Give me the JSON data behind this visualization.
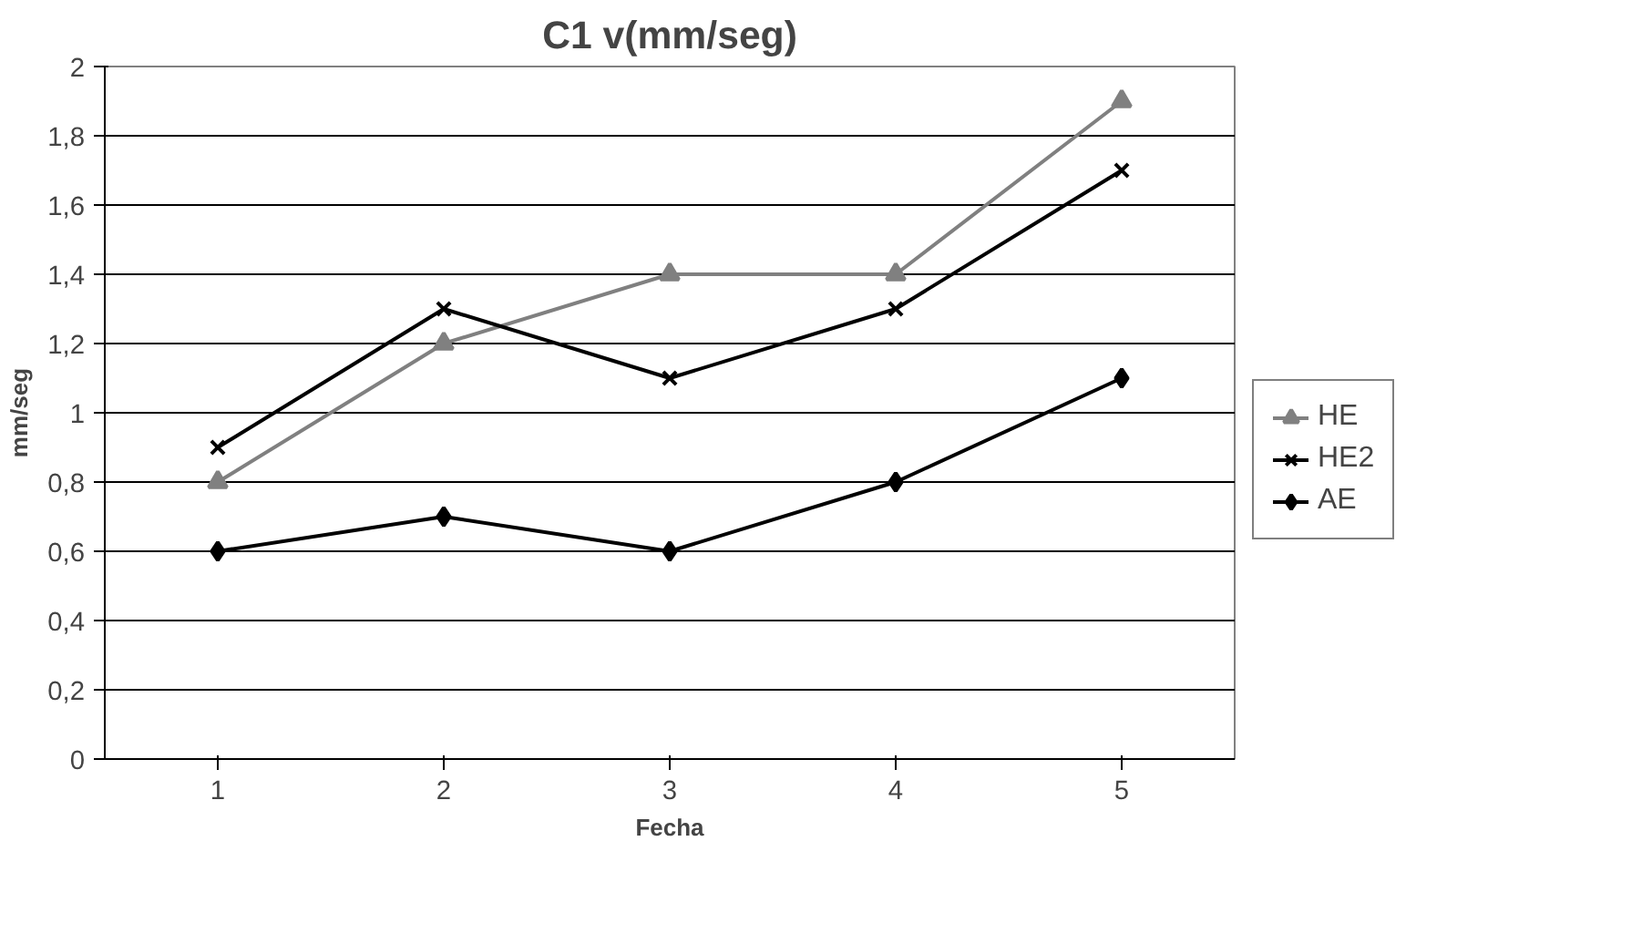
{
  "chart_data": {
    "type": "line",
    "title": "C1 v(mm/seg)",
    "xlabel": "Fecha",
    "ylabel": "mm/seg",
    "categories": [
      "1",
      "2",
      "3",
      "4",
      "5"
    ],
    "series": [
      {
        "name": "HE",
        "color": "#808080",
        "marker": "triangle",
        "values": [
          0.8,
          1.2,
          1.4,
          1.4,
          1.9
        ]
      },
      {
        "name": "HE2",
        "color": "#000000",
        "marker": "x",
        "values": [
          0.9,
          1.3,
          1.1,
          1.3,
          1.7
        ]
      },
      {
        "name": "AE",
        "color": "#000000",
        "marker": "diamond",
        "values": [
          0.6,
          0.7,
          0.6,
          0.8,
          1.1
        ]
      }
    ],
    "ylim": [
      0,
      2
    ],
    "yticks": [
      0,
      {
        "value": 0.2,
        "label": "0,2"
      },
      {
        "value": 0.4,
        "label": "0,4"
      },
      {
        "value": 0.6,
        "label": "0,6"
      },
      {
        "value": 0.8,
        "label": "0,8"
      },
      1,
      {
        "value": 1.2,
        "label": "1,2"
      },
      {
        "value": 1.4,
        "label": "1,4"
      },
      {
        "value": 1.6,
        "label": "1,6"
      },
      {
        "value": 1.8,
        "label": "1,8"
      },
      2
    ],
    "grid": "y",
    "legend": "right",
    "line_style": "solid"
  }
}
